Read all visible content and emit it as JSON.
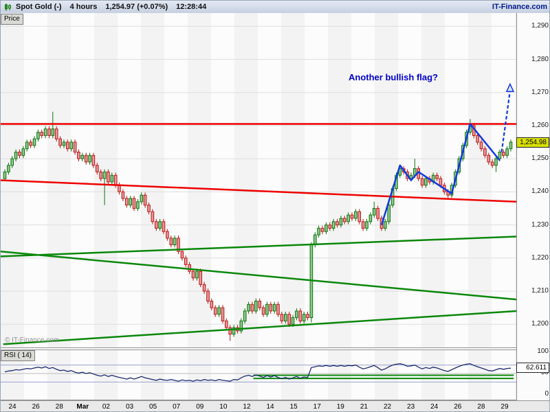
{
  "titlebar": {
    "instrument": "Spot Gold (-)",
    "timeframe": "4 hours",
    "quote": "1,254.97 (+0.07%)",
    "time": "12:28:44",
    "brand": "IT-Finance.com"
  },
  "price_panel": {
    "tab": "Price",
    "watermark": "© IT-Finance.com",
    "annotation": "Another bullish flag?",
    "last_price_badge": "1,254.98",
    "last_price_value": 1254.98
  },
  "rsi_panel": {
    "tab": "RSI ( 14)",
    "value_badge": "62.611"
  },
  "colors": {
    "up_fill": "#8fc98f",
    "up_stroke": "#0c720c",
    "down_fill": "#e09c9c",
    "down_stroke": "#c01414",
    "red_line": "#ee0000",
    "green_line": "#0a870a",
    "blue": "#1238e0",
    "rsi_line": "#1a2a6e",
    "grid": "#dedede",
    "badge": "#d9e000"
  },
  "chart_data": {
    "type": "candlestick",
    "title": "Spot Gold 4 hours",
    "price_axis": {
      "min": 1193,
      "max": 1294,
      "ticks": [
        [
          1290,
          "1,290"
        ],
        [
          1280,
          "1,280"
        ],
        [
          1270,
          "1,270"
        ],
        [
          1260,
          "1,260"
        ],
        [
          1250,
          "1,250"
        ],
        [
          1240,
          "1,240"
        ],
        [
          1230,
          "1,230"
        ],
        [
          1220,
          "1,220"
        ],
        [
          1210,
          "1,210"
        ],
        [
          1200,
          "1,200"
        ]
      ]
    },
    "x_labels": [
      "24",
      "26",
      "28",
      "Mar",
      "02",
      "03",
      "05",
      "07",
      "09",
      "10",
      "12",
      "14",
      "15",
      "17",
      "19",
      "21",
      "22",
      "23",
      "24",
      "26",
      "28",
      "29"
    ],
    "candles": {
      "first_open": 1244,
      "default_wick": 0.8,
      "closes": [
        1246,
        1248,
        1250,
        1252,
        1251,
        1253,
        1255,
        1254,
        1256,
        1258,
        1257,
        1259,
        1257,
        1259,
        1256,
        1254,
        1255,
        1253,
        1255,
        1252,
        1250,
        1251,
        1249,
        1251,
        1248,
        1246,
        1244,
        1246,
        1243,
        1245,
        1242,
        1240,
        1238,
        1236,
        1238,
        1235,
        1237,
        1239,
        1236,
        1234,
        1231,
        1229,
        1231,
        1228,
        1226,
        1224,
        1226,
        1222,
        1220,
        1218,
        1216,
        1214,
        1216,
        1212,
        1210,
        1207,
        1205,
        1203,
        1205,
        1201,
        1199,
        1197,
        1199,
        1198,
        1201,
        1204,
        1206,
        1204,
        1207,
        1205,
        1203,
        1206,
        1204,
        1206,
        1203,
        1201,
        1203,
        1200,
        1202,
        1204,
        1201,
        1203,
        1202,
        1224,
        1227,
        1229,
        1228,
        1230,
        1229,
        1231,
        1230,
        1232,
        1231,
        1233,
        1232,
        1234,
        1231,
        1229,
        1231,
        1233,
        1235,
        1232,
        1229,
        1231,
        1236,
        1241,
        1245,
        1247,
        1246,
        1244,
        1245,
        1247,
        1244,
        1242,
        1244,
        1243,
        1245,
        1244,
        1242,
        1240,
        1239,
        1242,
        1246,
        1250,
        1254,
        1258,
        1260,
        1257,
        1255,
        1253,
        1251,
        1249,
        1248,
        1250,
        1252,
        1251,
        1253,
        1255
      ],
      "high_overrides": {
        "13": 1264.2,
        "100": 1237,
        "111": 1250,
        "126": 1262
      },
      "low_overrides": {
        "27": 1236,
        "61": 1195,
        "83": 1200.5,
        "133": 1246
      }
    },
    "overlays": {
      "red_lines": [
        {
          "x1": 0,
          "p1": 1260.5,
          "x2": 1,
          "p2": 1260.5
        },
        {
          "x1": 0,
          "p1": 1243.5,
          "x2": 1,
          "p2": 1237
        }
      ],
      "green_lines": [
        {
          "x1": 0,
          "p1": 1220.5,
          "x2": 1,
          "p2": 1226.5
        },
        {
          "x1": 0,
          "p1": 1222,
          "x2": 1,
          "p2": 1207.5
        },
        {
          "x1": 0.005,
          "p1": 1194,
          "x2": 1,
          "p2": 1204
        }
      ],
      "blue_flag_solid": [
        [
          102,
          1230
        ],
        [
          107,
          1248
        ],
        [
          110,
          1243.5
        ],
        [
          112,
          1246
        ],
        [
          121,
          1239.5
        ],
        [
          126,
          1260.5
        ],
        [
          134,
          1249.5
        ]
      ],
      "blue_flag_dashed": [
        [
          134.5,
          1252
        ],
        [
          136.8,
          1270.5
        ]
      ]
    },
    "rsi": {
      "period": 14,
      "last": 62.611,
      "levels": [
        [
          70,
          "#9aa2cc"
        ],
        [
          50,
          "#bdbdbd"
        ],
        [
          30,
          "#9aa2cc"
        ]
      ],
      "rsi_ticks": [
        [
          100,
          "100"
        ],
        [
          50,
          "50"
        ],
        [
          0,
          "0"
        ]
      ],
      "green_lines": [
        {
          "x1": 0.49,
          "v1": 46,
          "x2": 0.995,
          "v2": 46
        },
        {
          "x1": 0.49,
          "v1": 38.5,
          "x2": 0.995,
          "v2": 38.5
        }
      ],
      "values": [
        54,
        56,
        57,
        59,
        58,
        60,
        62,
        61,
        63,
        65,
        63,
        66,
        62,
        64,
        60,
        57,
        58,
        55,
        57,
        53,
        51,
        53,
        50,
        52,
        49,
        46,
        44,
        47,
        43,
        46,
        43,
        41,
        39,
        37,
        40,
        37,
        40,
        43,
        40,
        38,
        36,
        34,
        37,
        35,
        34,
        36,
        34,
        32,
        35,
        33,
        34,
        32,
        35,
        33,
        36,
        34,
        35,
        33,
        36,
        34,
        33,
        32,
        36,
        35,
        40,
        44,
        46,
        43,
        47,
        44,
        41,
        45,
        42,
        45,
        41,
        38,
        41,
        37,
        40,
        43,
        39,
        42,
        41,
        64,
        66,
        68,
        67,
        69,
        67,
        69,
        67,
        69,
        67,
        69,
        68,
        70,
        65,
        61,
        63,
        66,
        69,
        64,
        58,
        61,
        66,
        70,
        72,
        73,
        71,
        67,
        68,
        70,
        65,
        61,
        64,
        62,
        65,
        63,
        60,
        57,
        55,
        59,
        63,
        67,
        70,
        72,
        73,
        69,
        66,
        63,
        60,
        57,
        56,
        59,
        62,
        60,
        62,
        62.6
      ]
    }
  }
}
